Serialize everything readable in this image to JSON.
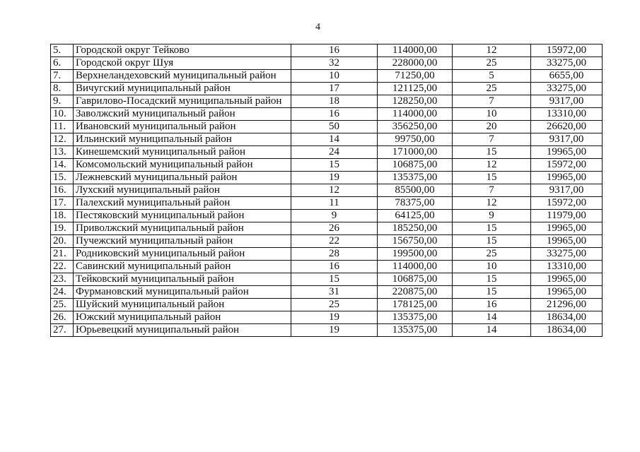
{
  "page_number": "4",
  "rows": [
    [
      "5.",
      "Городской округ Тейково",
      "16",
      "114000,00",
      "12",
      "15972,00"
    ],
    [
      "6.",
      "Городской округ Шуя",
      "32",
      "228000,00",
      "25",
      "33275,00"
    ],
    [
      "7.",
      "Верхнеландеховский муниципальный район",
      "10",
      "71250,00",
      "5",
      "6655,00"
    ],
    [
      "8.",
      "Вичугский муниципальный район",
      "17",
      "121125,00",
      "25",
      "33275,00"
    ],
    [
      "9.",
      "Гаврилово-Посадский муниципальный район",
      "18",
      "128250,00",
      "7",
      "9317,00"
    ],
    [
      "10.",
      "Заволжский муниципальный район",
      "16",
      "114000,00",
      "10",
      "13310,00"
    ],
    [
      "11.",
      "Ивановский муниципальный район",
      "50",
      "356250,00",
      "20",
      "26620,00"
    ],
    [
      "12.",
      "Ильинский муниципальный район",
      "14",
      "99750,00",
      "7",
      "9317,00"
    ],
    [
      "13.",
      "Кинешемский муниципальный район",
      "24",
      "171000,00",
      "15",
      "19965,00"
    ],
    [
      "14.",
      "Комсомольский муниципальный район",
      "15",
      "106875,00",
      "12",
      "15972,00"
    ],
    [
      "15.",
      "Лежневский муниципальный район",
      "19",
      "135375,00",
      "15",
      "19965,00"
    ],
    [
      "16.",
      "Лухский муниципальный район",
      "12",
      "85500,00",
      "7",
      "9317,00"
    ],
    [
      "17.",
      "Палехский муниципальный район",
      "11",
      "78375,00",
      "12",
      "15972,00"
    ],
    [
      "18.",
      "Пестяковский муниципальный район",
      "9",
      "64125,00",
      "9",
      "11979,00"
    ],
    [
      "19.",
      "Приволжский муниципальный район",
      "26",
      "185250,00",
      "15",
      "19965,00"
    ],
    [
      "20.",
      "Пучежский муниципальный район",
      "22",
      "156750,00",
      "15",
      "19965,00"
    ],
    [
      "21.",
      "Родниковский муниципальный район",
      "28",
      "199500,00",
      "25",
      "33275,00"
    ],
    [
      "22.",
      "Савинский муниципальный район",
      "16",
      "114000,00",
      "10",
      "13310,00"
    ],
    [
      "23.",
      "Тейковский муниципальный район",
      "15",
      "106875,00",
      "15",
      "19965,00"
    ],
    [
      "24.",
      "Фурмановский муниципальный район",
      "31",
      "220875,00",
      "15",
      "19965,00"
    ],
    [
      "25.",
      "Шуйский муниципальный район",
      "25",
      "178125,00",
      "16",
      "21296,00"
    ],
    [
      "26.",
      "Южский муниципальный район",
      "19",
      "135375,00",
      "14",
      "18634,00"
    ],
    [
      "27.",
      "Юрьевецкий муниципальный район",
      "19",
      "135375,00",
      "14",
      "18634,00"
    ]
  ]
}
